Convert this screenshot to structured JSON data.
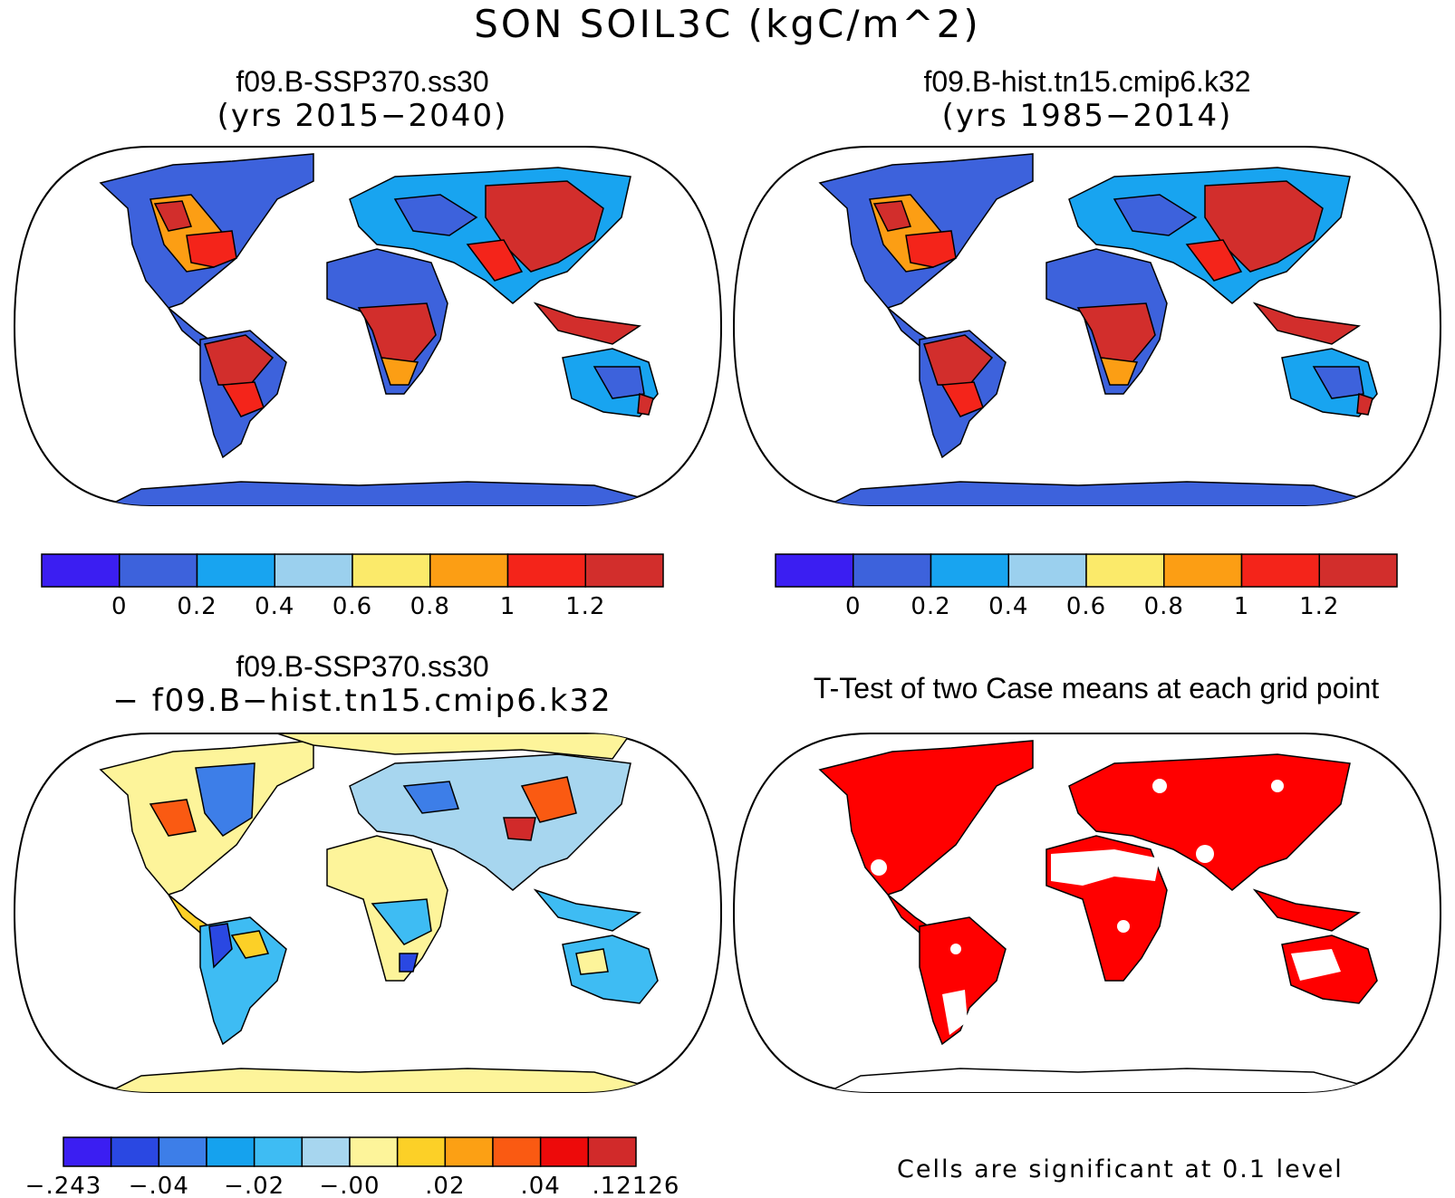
{
  "figure_title": "SON SOIL3C (kgC/m^2)",
  "panels": [
    {
      "line1": "f09.B-SSP370.ss30",
      "line2": "(yrs 2015−2040)"
    },
    {
      "line1": "f09.B-hist.tn15.cmip6.k32",
      "line2": "(yrs 1985−2014)"
    },
    {
      "line1": "f09.B-SSP370.ss30",
      "line2": "− f09.B−hist.tn15.cmip6.k32"
    },
    {
      "line1": "T-Test of two Case means at each grid point"
    }
  ],
  "colorbars": {
    "absolute": {
      "colors": [
        "#3b1ef2",
        "#3d62dc",
        "#18a4f0",
        "#9bd0ee",
        "#fbea6a",
        "#fc9e14",
        "#f4241a",
        "#d22e2c"
      ],
      "labels": [
        "0",
        "0.2",
        "0.4",
        "0.6",
        "0.8",
        "1",
        "1.2"
      ]
    },
    "difference": {
      "colors": [
        "#3b1ef2",
        "#2a48e2",
        "#3d7ee8",
        "#15a2ee",
        "#3ebcf3",
        "#a7d6ef",
        "#fdf49a",
        "#fcd027",
        "#fca014",
        "#fa5a12",
        "#ed0a0a",
        "#d12a2a"
      ],
      "labels": [
        "−.243",
        "−.04",
        "−.02",
        "−.00",
        ".02",
        ".04",
        ".12126"
      ]
    }
  },
  "ttest_note": "Cells are significant at 0.1 level",
  "map_colors": {
    "ocean": "#ffffff",
    "significant": "#ff0000",
    "antarctica_low": "#3d62dc",
    "antarctica_diff": "#fdf49a"
  }
}
